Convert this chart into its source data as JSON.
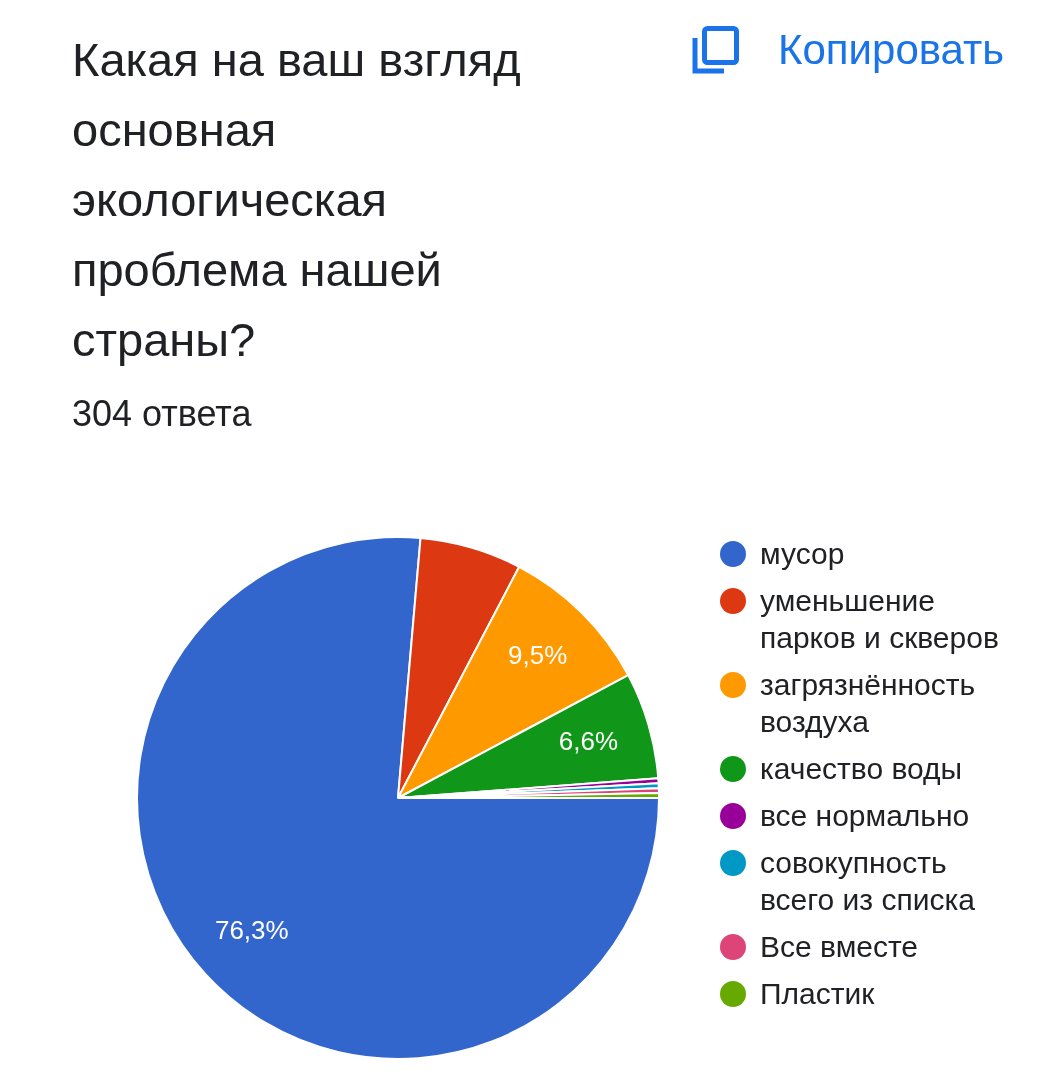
{
  "chart_data": {
    "type": "pie",
    "title": "Какая на ваш взгляд основная экологическая проблема нашей страны?",
    "subtitle": "304 ответа",
    "categories": [
      "мусор",
      "уменьшение парков и скверов",
      "загрязнённость воздуха",
      "качество воды",
      "все нормально",
      "совокупность всего из списка",
      "Все вместе",
      "Пластик"
    ],
    "values": [
      76.3,
      6.3,
      9.5,
      6.6,
      0.3,
      0.3,
      0.3,
      0.3
    ],
    "colors": [
      "#3366cc",
      "#dc3912",
      "#ff9900",
      "#109618",
      "#990099",
      "#0099c6",
      "#dd4477",
      "#66aa00"
    ],
    "value_labels": [
      "76,3%",
      null,
      "9,5%",
      "6,6%",
      null,
      null,
      null,
      null
    ],
    "legend": "right",
    "annotations": [
      "Копировать"
    ]
  }
}
